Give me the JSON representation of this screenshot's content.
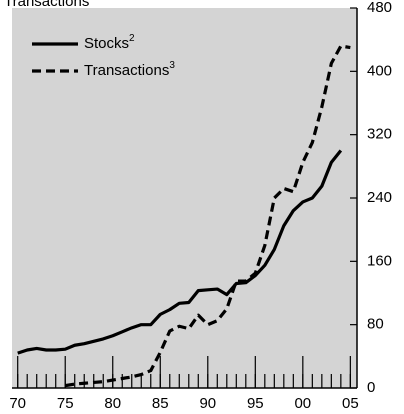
{
  "chart_data": {
    "type": "line",
    "title": "Transactions",
    "x": [
      1970,
      1971,
      1972,
      1973,
      1974,
      1975,
      1976,
      1977,
      1978,
      1979,
      1980,
      1981,
      1982,
      1983,
      1984,
      1985,
      1986,
      1987,
      1988,
      1989,
      1990,
      1991,
      1992,
      1993,
      1994,
      1995,
      1996,
      1997,
      1998,
      1999,
      2000,
      2001,
      2002,
      2003,
      2004,
      2005
    ],
    "series": [
      {
        "name": "Stocks",
        "name_sup": "2",
        "color": "#000000",
        "dash": false,
        "values": [
          44,
          48,
          50,
          48,
          48,
          49,
          54,
          56,
          59,
          62,
          66,
          71,
          76,
          80,
          80,
          93,
          99,
          107,
          108,
          123,
          124,
          125,
          118,
          132,
          133,
          142,
          155,
          175,
          205,
          224,
          235,
          240,
          255,
          285,
          300,
          null
        ]
      },
      {
        "name": "Transactions",
        "name_sup": "3",
        "color": "#000000",
        "dash": true,
        "values": [
          null,
          null,
          null,
          null,
          null,
          3,
          5,
          6,
          7,
          8,
          10,
          12,
          14,
          17,
          22,
          45,
          72,
          78,
          75,
          92,
          80,
          85,
          100,
          135,
          135,
          145,
          180,
          240,
          252,
          248,
          285,
          310,
          355,
          410,
          432,
          430
        ]
      }
    ],
    "xlim": [
      1969.4,
      2005.7
    ],
    "xticks": [
      {
        "value": 1970,
        "label": "70"
      },
      {
        "value": 1975,
        "label": "75"
      },
      {
        "value": 1980,
        "label": "80"
      },
      {
        "value": 1985,
        "label": "85"
      },
      {
        "value": 1990,
        "label": "90"
      },
      {
        "value": 1995,
        "label": "95"
      },
      {
        "value": 2000,
        "label": "00"
      },
      {
        "value": 2005,
        "label": "05"
      }
    ],
    "ylim": [
      0,
      480
    ],
    "yticks": [
      0,
      80,
      160,
      240,
      320,
      400,
      480
    ],
    "legend": "upper left"
  }
}
